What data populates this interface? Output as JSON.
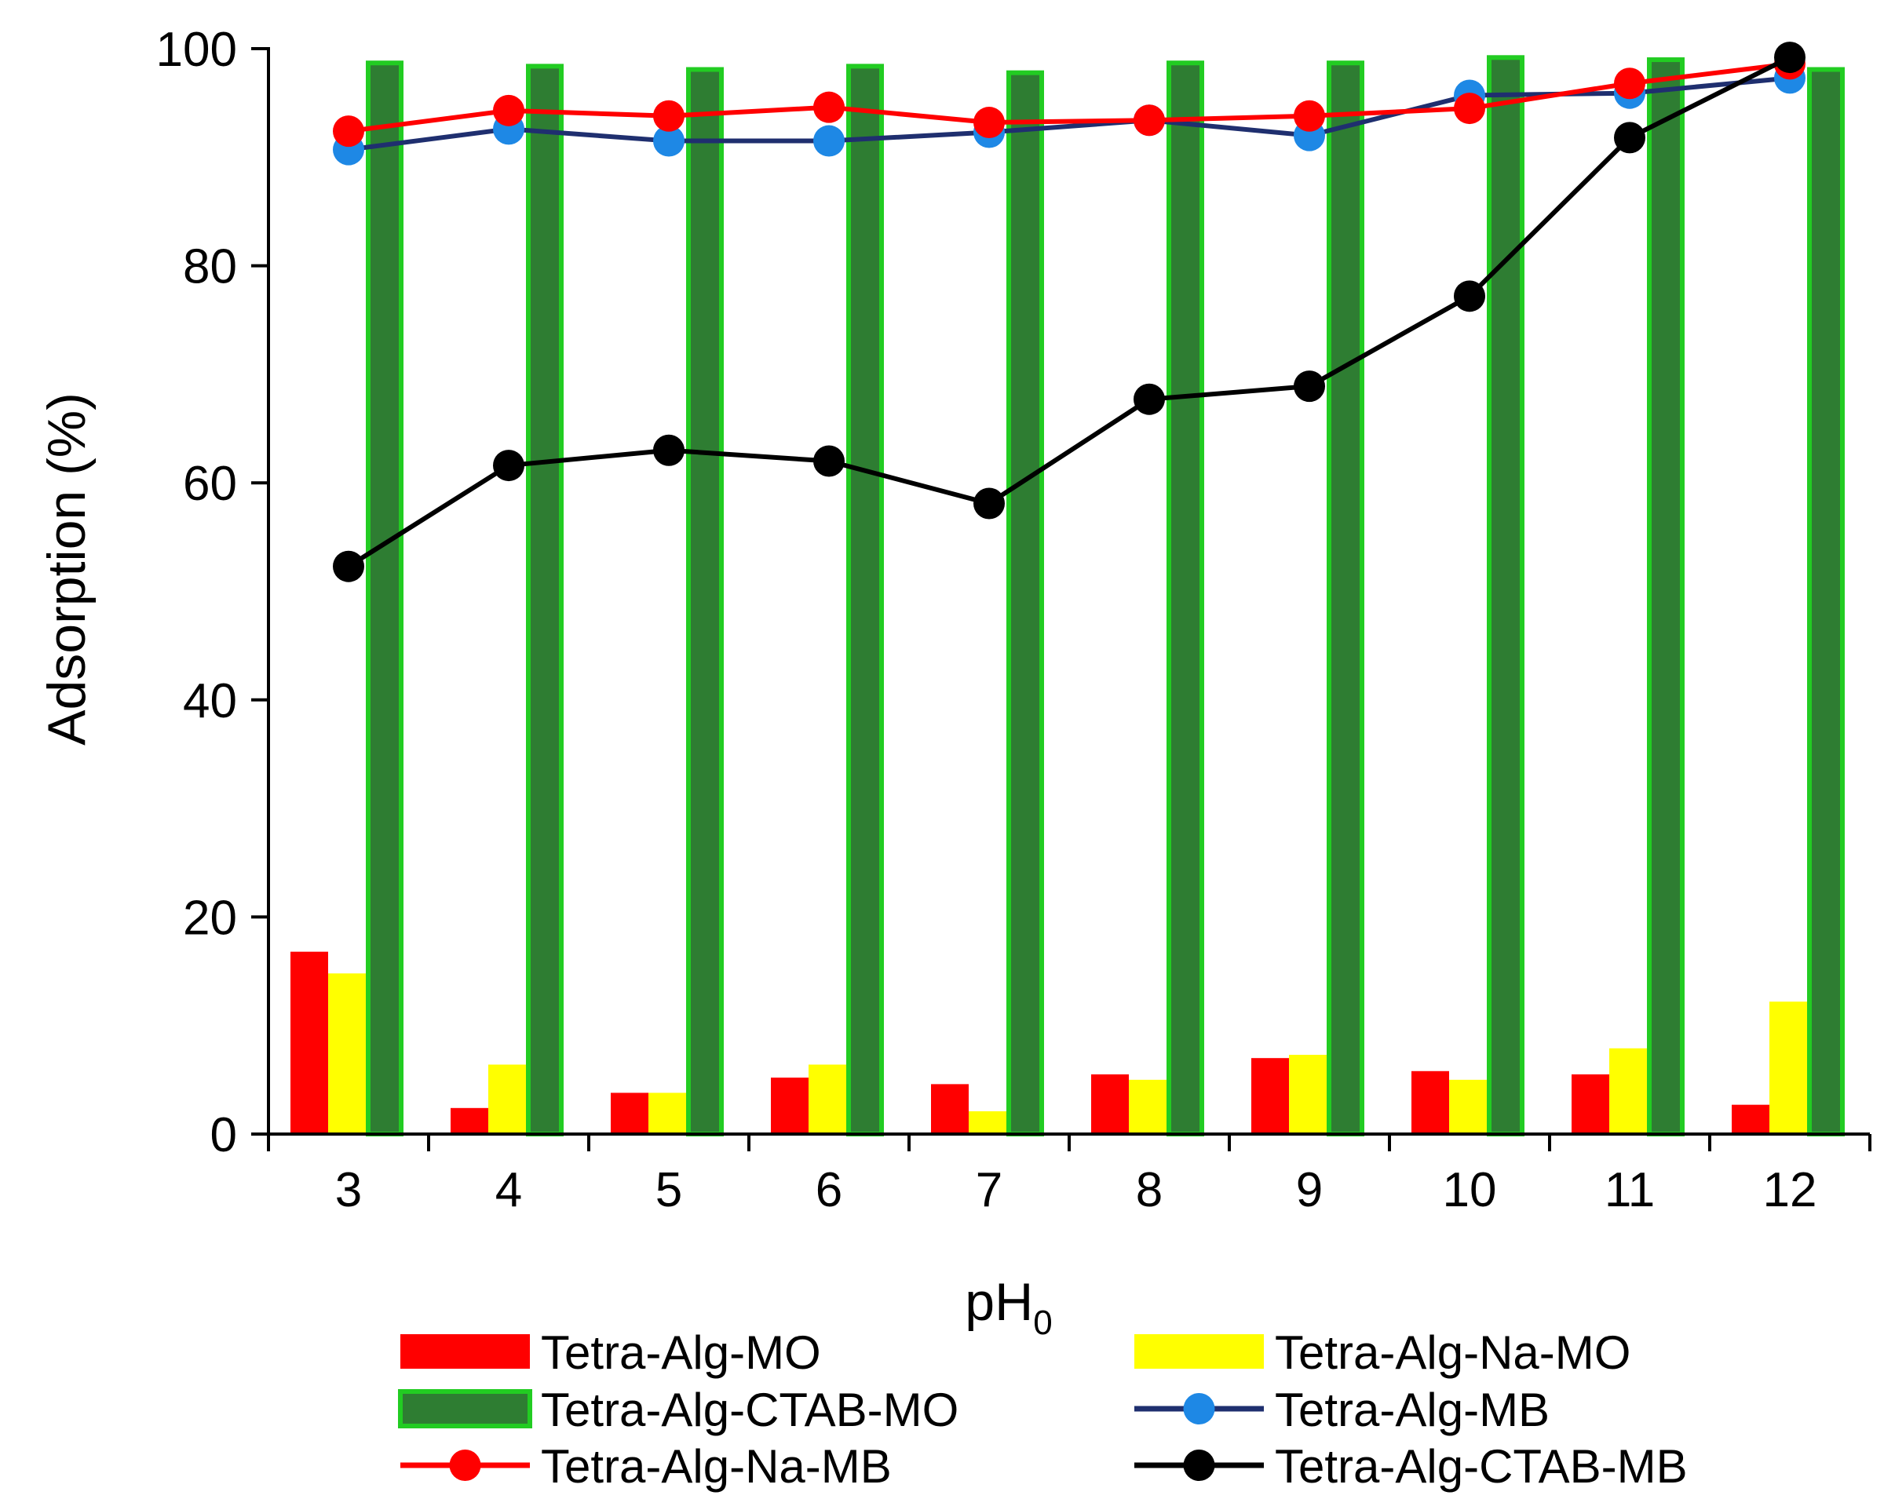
{
  "chart_data": {
    "type": "bar",
    "title": "",
    "xlabel": "pH",
    "xlabel_subscript": "0",
    "ylabel": "Adsorption (%)",
    "ylim": [
      0,
      100
    ],
    "yticks": [
      0,
      20,
      40,
      60,
      80,
      100
    ],
    "grid": false,
    "legend_position": "bottom",
    "categories": [
      "3",
      "4",
      "5",
      "6",
      "7",
      "8",
      "9",
      "10",
      "11",
      "12"
    ],
    "series": [
      {
        "name": "Tetra-Alg-MO",
        "kind": "bar",
        "color": "#ff0000",
        "values": [
          16.8,
          2.4,
          3.8,
          5.2,
          4.6,
          5.5,
          7.0,
          5.8,
          5.5,
          2.7
        ]
      },
      {
        "name": "Tetra-Alg-Na-MO",
        "kind": "bar",
        "color": "#ffff00",
        "values": [
          14.8,
          6.4,
          3.8,
          6.4,
          2.1,
          5.0,
          7.3,
          5.0,
          7.9,
          12.2
        ]
      },
      {
        "name": "Tetra-Alg-CTAB-MO",
        "kind": "bar",
        "color": "#2e7d32",
        "edge": "#22cc22",
        "values": [
          98.9,
          98.6,
          98.3,
          98.6,
          98.0,
          98.9,
          98.9,
          99.4,
          99.2,
          98.3
        ]
      },
      {
        "name": "Tetra-Alg-MB",
        "kind": "line",
        "color": "#1f2f6f",
        "marker_color": "#1e88e5",
        "values": [
          90.7,
          92.6,
          91.5,
          91.5,
          92.3,
          93.4,
          92.0,
          95.7,
          95.9,
          97.3
        ]
      },
      {
        "name": "Tetra-Alg-Na-MB",
        "kind": "line",
        "color": "#ff0000",
        "marker_color": "#ff0000",
        "values": [
          92.4,
          94.3,
          93.8,
          94.6,
          93.2,
          93.4,
          93.8,
          94.5,
          96.8,
          98.6
        ]
      },
      {
        "name": "Tetra-Alg-CTAB-MB",
        "kind": "line",
        "color": "#000000",
        "marker_color": "#000000",
        "values": [
          52.3,
          61.6,
          63.0,
          62.0,
          58.1,
          67.7,
          68.9,
          77.2,
          91.8,
          99.2
        ]
      }
    ]
  }
}
